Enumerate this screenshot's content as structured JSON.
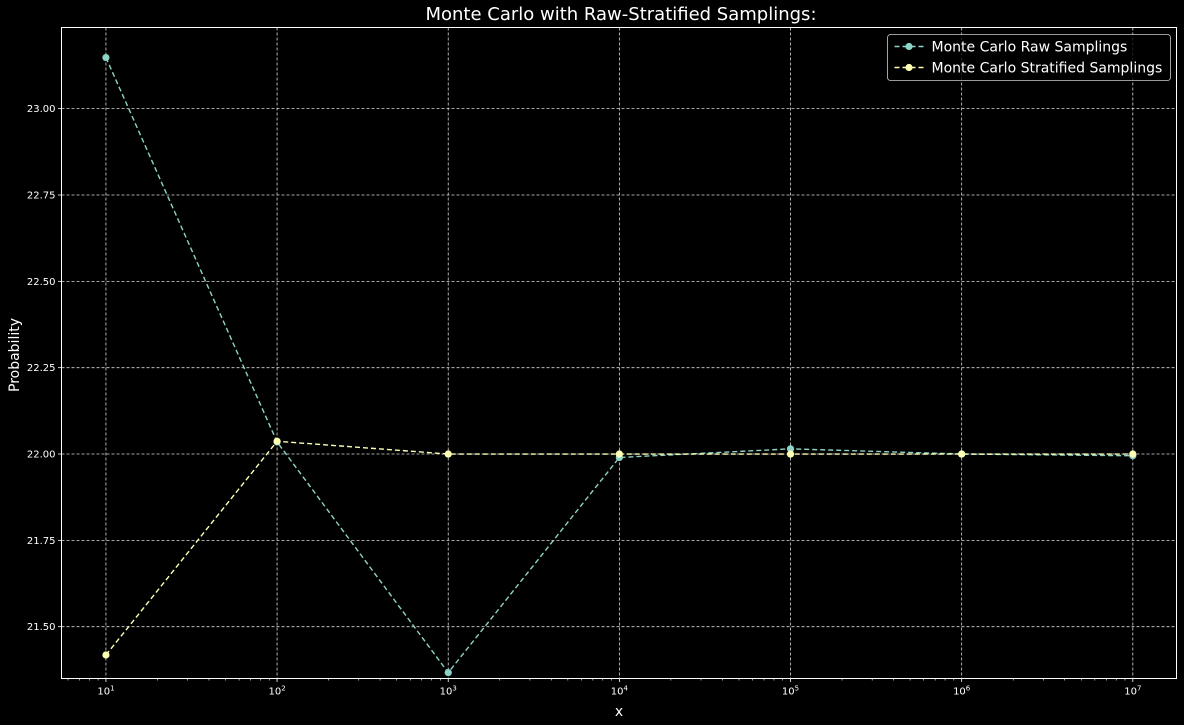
{
  "colors": {
    "background": "#000000",
    "foreground": "#ffffff",
    "grid": "#d9d9d9",
    "raw": "#8dd3c7",
    "stratified": "#feffb3"
  },
  "chart_data": {
    "type": "line",
    "title": "Monte Carlo with Raw-Stratified Samplings:",
    "xlabel": "x",
    "ylabel": "Probability",
    "xscale": "log",
    "xlim": [
      5.5,
      18000000
    ],
    "ylim": [
      21.35,
      23.235
    ],
    "grid": true,
    "legend_position": "top-right",
    "x": [
      10,
      100,
      1000,
      10000,
      100000,
      1000000,
      10000000
    ],
    "xticks": [
      {
        "value": 10,
        "base": "10",
        "exp": "1"
      },
      {
        "value": 100,
        "base": "10",
        "exp": "2"
      },
      {
        "value": 1000,
        "base": "10",
        "exp": "3"
      },
      {
        "value": 10000,
        "base": "10",
        "exp": "4"
      },
      {
        "value": 100000,
        "base": "10",
        "exp": "5"
      },
      {
        "value": 1000000,
        "base": "10",
        "exp": "6"
      },
      {
        "value": 10000000,
        "base": "10",
        "exp": "7"
      }
    ],
    "yticks": [
      {
        "value": 21.5,
        "label": "21.50"
      },
      {
        "value": 21.75,
        "label": "21.75"
      },
      {
        "value": 22.0,
        "label": "22.00"
      },
      {
        "value": 22.25,
        "label": "22.25"
      },
      {
        "value": 22.5,
        "label": "22.50"
      },
      {
        "value": 22.75,
        "label": "22.75"
      },
      {
        "value": 23.0,
        "label": "23.00"
      }
    ],
    "series": [
      {
        "name": "Monte Carlo Raw Samplings",
        "color_key": "raw",
        "values": [
          23.148,
          22.035,
          21.367,
          21.99,
          22.015,
          22.0,
          21.995
        ]
      },
      {
        "name": "Monte Carlo Stratified Samplings",
        "color_key": "stratified",
        "values": [
          21.418,
          22.037,
          22.0,
          22.0,
          22.0,
          22.0,
          22.0
        ]
      }
    ]
  }
}
